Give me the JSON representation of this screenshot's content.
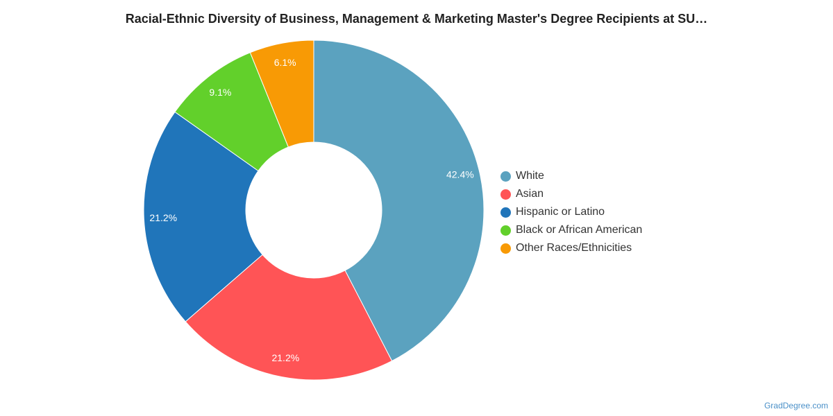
{
  "chart_data": {
    "type": "pie",
    "title": "Racial-Ethnic Diversity of Business, Management & Marketing Master's Degree Recipients at SU…",
    "categories": [
      "White",
      "Asian",
      "Hispanic or Latino",
      "Black or African American",
      "Other Races/Ethnicities"
    ],
    "values": [
      42.4,
      21.2,
      21.2,
      9.1,
      6.1
    ],
    "labels": [
      "42.4%",
      "21.2%",
      "21.2%",
      "9.1%",
      "6.1%"
    ],
    "colors": [
      "#5ba2bf",
      "#ff5456",
      "#2075ba",
      "#62d02b",
      "#f89a05"
    ],
    "legend_position": "right",
    "donut": true
  },
  "credit": "GradDegree.com"
}
